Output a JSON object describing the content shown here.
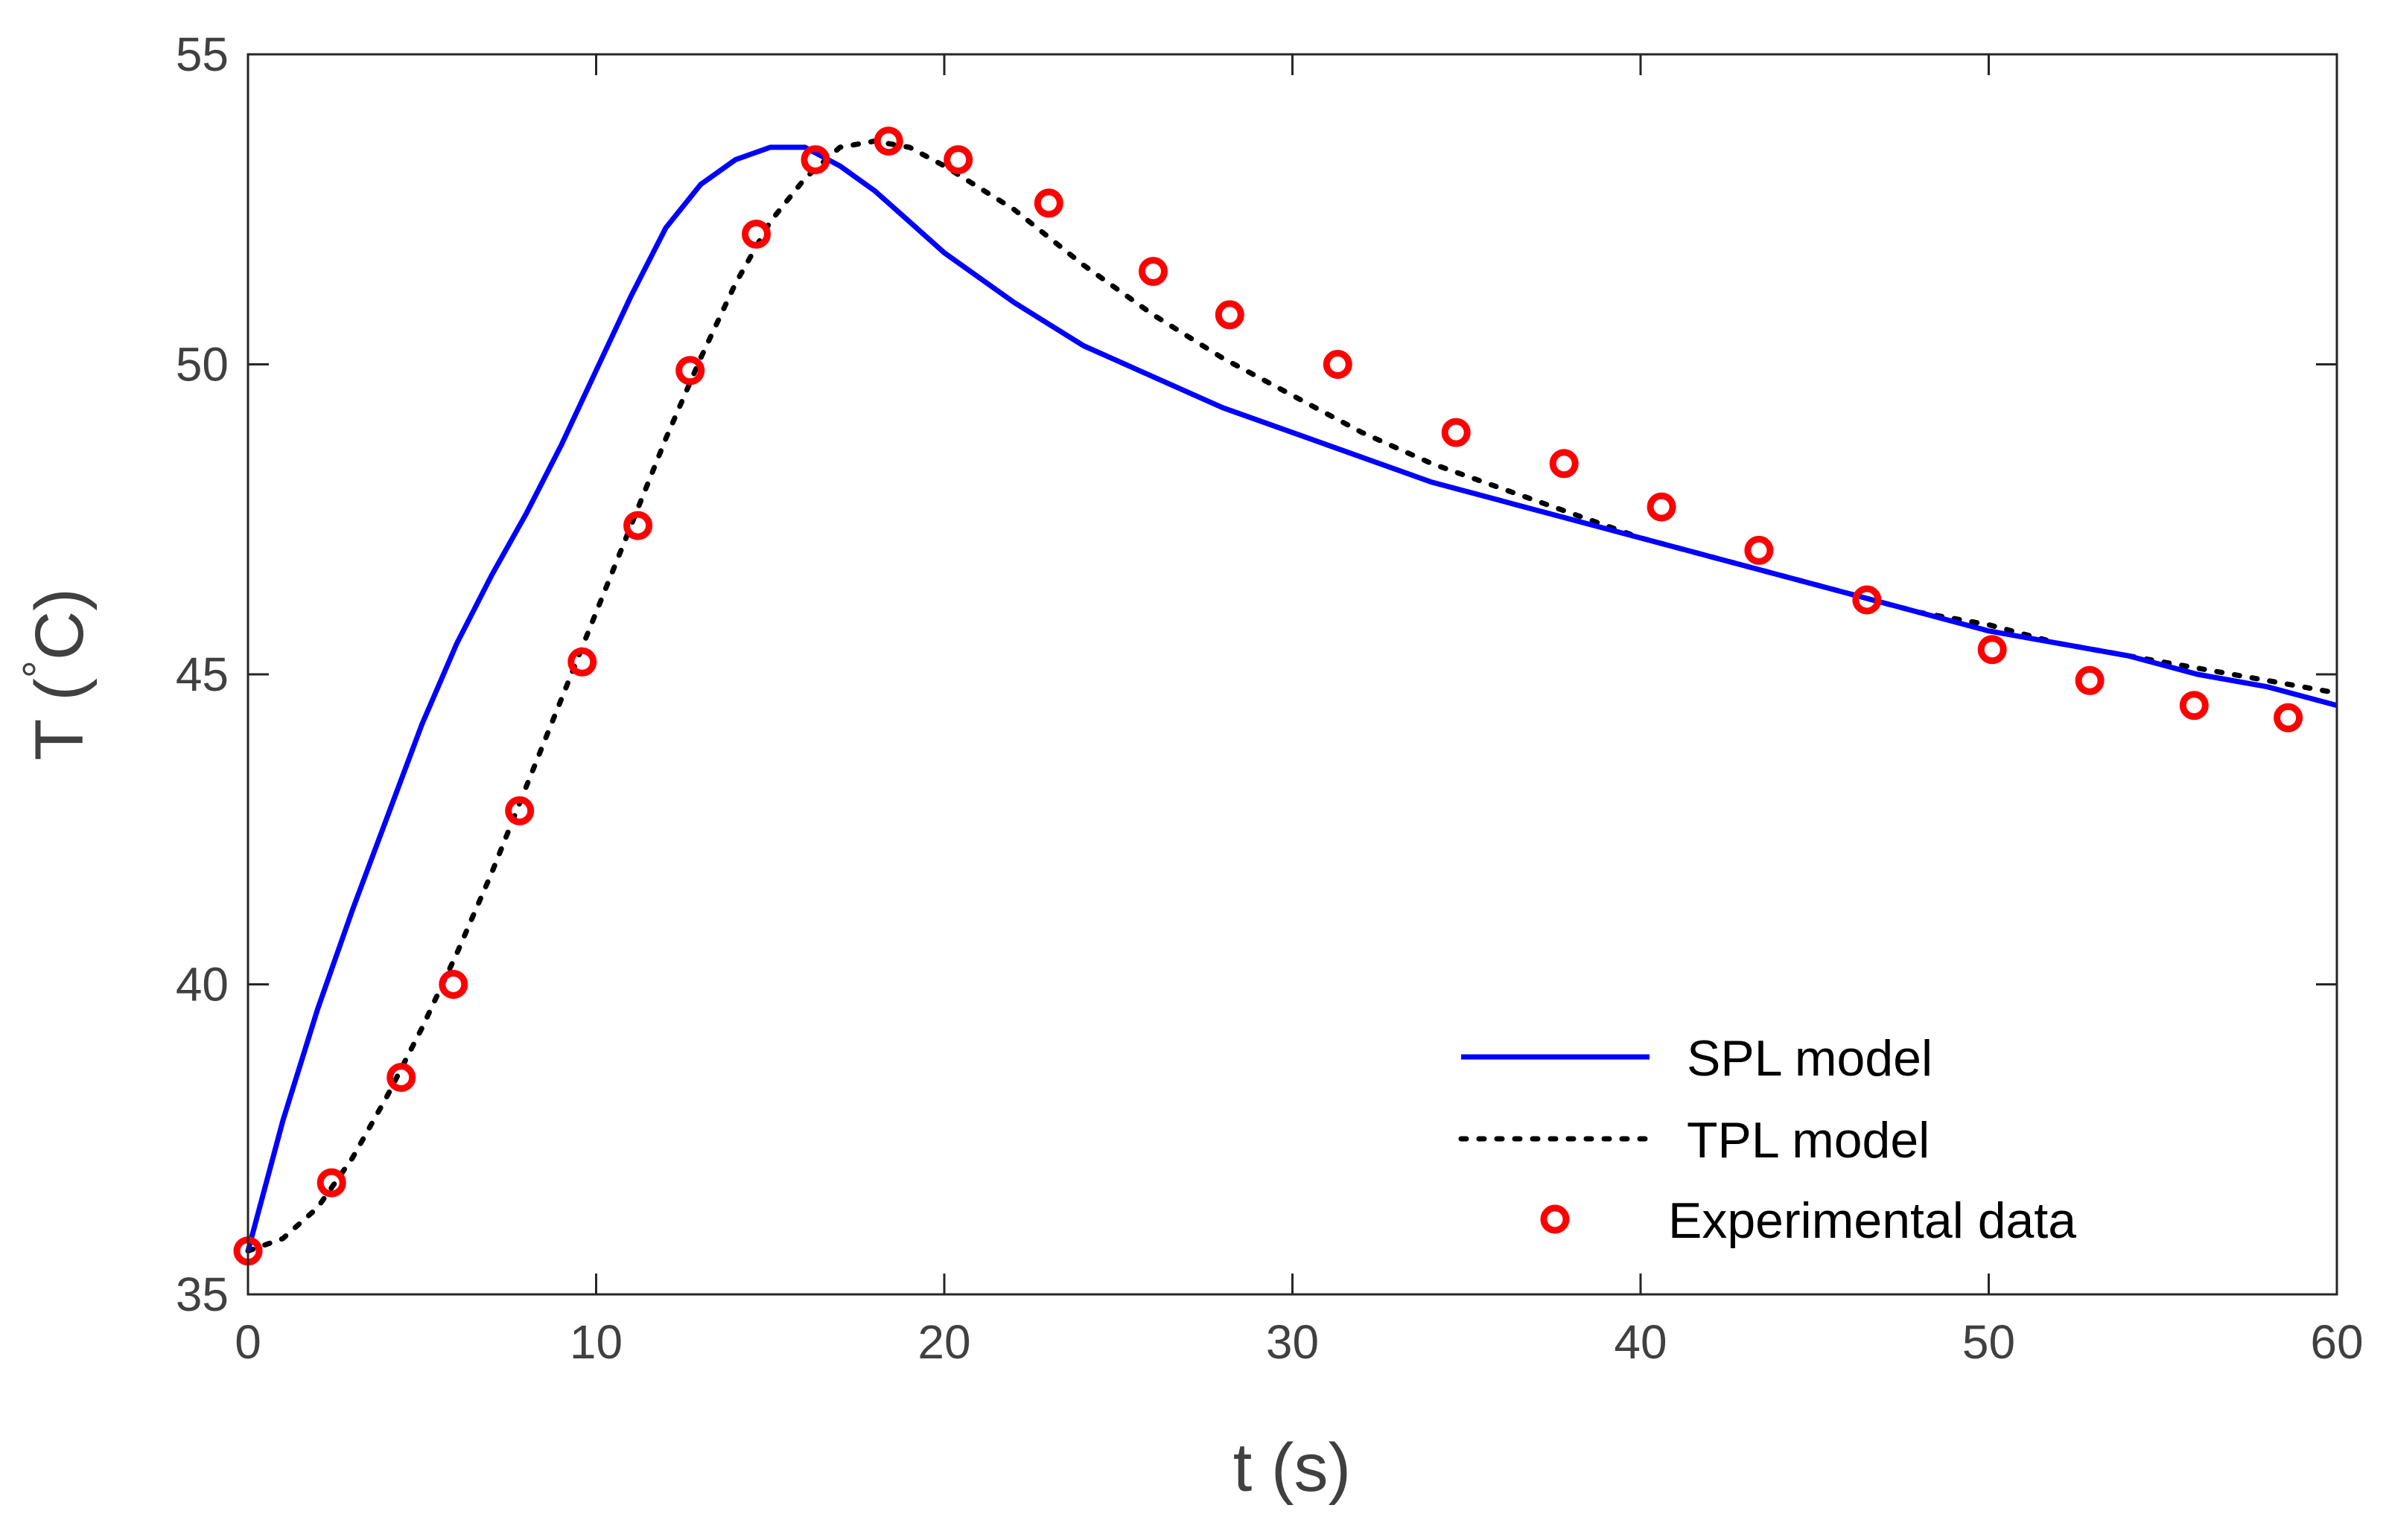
{
  "chart_data": {
    "type": "line",
    "title": "",
    "xlabel": "t (s)",
    "ylabel_main": "T (",
    "ylabel_degree": "°",
    "ylabel_unit": "C)",
    "xlim": [
      0,
      60
    ],
    "ylim": [
      35,
      55
    ],
    "xticks": [
      0,
      10,
      20,
      30,
      40,
      50,
      60
    ],
    "yticks": [
      35,
      40,
      45,
      50,
      55
    ],
    "grid": false,
    "legend_position": "bottom-right",
    "colors": {
      "spl": "#0000ff",
      "tpl": "#000000",
      "experimental": "#ff0000"
    },
    "series": [
      {
        "name": "SPL model",
        "style": "solid-line",
        "x": [
          0,
          1,
          2,
          3,
          4,
          5,
          6,
          7,
          8,
          9,
          10,
          11,
          12,
          13,
          14,
          15,
          16,
          17,
          18,
          19,
          20,
          22,
          24,
          26,
          28,
          30,
          32,
          34,
          36,
          38,
          40,
          42,
          44,
          46,
          48,
          50,
          52,
          54,
          56,
          58,
          60
        ],
        "y": [
          35.7,
          37.8,
          39.6,
          41.2,
          42.7,
          44.2,
          45.5,
          46.6,
          47.6,
          48.7,
          49.9,
          51.1,
          52.2,
          52.9,
          53.3,
          53.5,
          53.5,
          53.2,
          52.8,
          52.3,
          51.8,
          51.0,
          50.3,
          49.8,
          49.3,
          48.9,
          48.5,
          48.1,
          47.8,
          47.5,
          47.2,
          46.9,
          46.6,
          46.3,
          46.0,
          45.7,
          45.5,
          45.3,
          45.0,
          44.8,
          44.5
        ]
      },
      {
        "name": "TPL model",
        "style": "dotted-line",
        "x": [
          0,
          1,
          2,
          3,
          4,
          5,
          6,
          7,
          8,
          9,
          10,
          11,
          12,
          13,
          14,
          15,
          16,
          17,
          18,
          19,
          20,
          22,
          24,
          26,
          28,
          30,
          32,
          34,
          36,
          38,
          40,
          42,
          44,
          46,
          48,
          50,
          52,
          54,
          56,
          58,
          60
        ],
        "y": [
          35.7,
          35.9,
          36.4,
          37.2,
          38.2,
          39.3,
          40.5,
          41.8,
          43.2,
          44.6,
          46.0,
          47.4,
          48.8,
          50.1,
          51.3,
          52.3,
          53.0,
          53.5,
          53.6,
          53.5,
          53.2,
          52.5,
          51.6,
          50.8,
          50.1,
          49.5,
          48.9,
          48.4,
          48.0,
          47.6,
          47.2,
          46.9,
          46.6,
          46.3,
          46.0,
          45.8,
          45.5,
          45.3,
          45.1,
          44.9,
          44.7
        ]
      },
      {
        "name": "Experimental data",
        "style": "circle-markers",
        "x": [
          0.0,
          2.4,
          4.4,
          5.9,
          7.8,
          9.6,
          11.2,
          12.7,
          14.6,
          16.3,
          18.4,
          20.4,
          23.0,
          26.0,
          28.2,
          31.3,
          34.7,
          37.8,
          40.6,
          43.4,
          46.5,
          50.1,
          52.9,
          55.9,
          58.6
        ],
        "y": [
          35.7,
          36.8,
          38.5,
          40.0,
          42.8,
          45.2,
          47.4,
          49.9,
          52.1,
          53.3,
          53.6,
          53.3,
          52.6,
          51.5,
          50.8,
          50.0,
          48.9,
          48.4,
          47.7,
          47.0,
          46.2,
          45.4,
          44.9,
          44.5,
          44.3
        ]
      }
    ]
  }
}
